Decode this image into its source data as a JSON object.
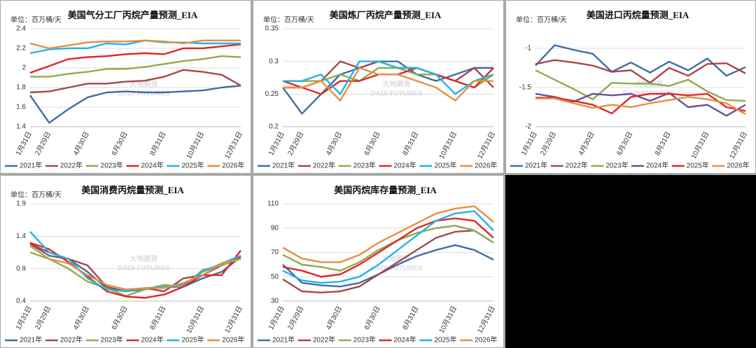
{
  "chart_data": [
    {
      "type": "line",
      "title": "美国气分工厂丙烷产量预测_EIA",
      "unit": "单位：百万桶/天",
      "watermark": "大地期货",
      "watermark_en": "DADI FUTURES",
      "categories": [
        "1月31日",
        "2月29日",
        null,
        "4月30日",
        null,
        "6月30日",
        null,
        "8月31日",
        null,
        "10月31日",
        null,
        "12月31日"
      ],
      "ylim": [
        1.4,
        2.4
      ],
      "yticks": [
        1.4,
        1.6,
        1.8,
        2,
        2.2,
        2.4
      ],
      "grid": true,
      "series": [
        {
          "name": "2021年",
          "color": "#3f6da3",
          "values": [
            1.72,
            1.44,
            1.58,
            1.7,
            1.75,
            1.76,
            1.75,
            1.75,
            1.76,
            1.77,
            1.8,
            1.82
          ]
        },
        {
          "name": "2022年",
          "color": "#a5484a",
          "values": [
            1.75,
            1.76,
            1.8,
            1.84,
            1.84,
            1.86,
            1.87,
            1.91,
            1.98,
            1.96,
            1.93,
            1.82
          ]
        },
        {
          "name": "2023年",
          "color": "#8fab4e",
          "values": [
            1.91,
            1.91,
            1.94,
            1.96,
            1.99,
            1.99,
            2.01,
            2.04,
            2.07,
            2.09,
            2.12,
            2.11
          ]
        },
        {
          "name": "2024年",
          "color": "#e42528",
          "values": [
            1.95,
            2.02,
            2.09,
            2.11,
            2.12,
            2.14,
            2.15,
            2.14,
            2.2,
            2.2,
            2.22,
            2.24
          ]
        },
        {
          "name": "2025年",
          "color": "#22b4e4",
          "values": [
            2.15,
            2.19,
            2.2,
            2.2,
            2.25,
            2.24,
            2.28,
            2.26,
            2.26,
            2.25,
            2.25,
            2.25
          ]
        },
        {
          "name": "2026年",
          "color": "#e68f42",
          "values": [
            2.25,
            2.2,
            2.23,
            2.26,
            2.27,
            2.27,
            2.28,
            2.27,
            2.25,
            2.28,
            2.28,
            2.28
          ]
        }
      ]
    },
    {
      "type": "line",
      "title": "美国炼厂丙烷产量预测_EIA",
      "unit": "单位：百万桶/天",
      "watermark": "大地期货",
      "watermark_en": "DADI FUTURES",
      "categories": [
        "1月31日",
        "2月29日",
        null,
        "4月30日",
        null,
        "6月30日",
        null,
        "8月31日",
        null,
        "10月31日",
        null,
        "12月31日"
      ],
      "ylim": [
        0.2,
        0.35
      ],
      "yticks": [
        0.2,
        0.25,
        0.3,
        0.35
      ],
      "grid": true,
      "series": [
        {
          "name": "2021年",
          "color": "#3f6da3",
          "values": [
            0.26,
            0.22,
            0.25,
            0.28,
            0.29,
            0.3,
            0.3,
            0.28,
            0.27,
            0.28,
            0.29,
            0.29
          ]
        },
        {
          "name": "2022年",
          "color": "#a5484a",
          "values": [
            0.26,
            0.26,
            0.27,
            0.3,
            0.29,
            0.3,
            0.29,
            0.29,
            0.28,
            0.27,
            0.29,
            0.26
          ]
        },
        {
          "name": "2023年",
          "color": "#8fab4e",
          "values": [
            0.27,
            0.27,
            0.27,
            0.28,
            0.27,
            0.29,
            0.29,
            0.28,
            0.28,
            0.27,
            0.26,
            0.28
          ]
        },
        {
          "name": "2024年",
          "color": "#e42528",
          "values": [
            0.27,
            0.26,
            0.25,
            0.27,
            0.27,
            0.28,
            0.28,
            0.29,
            0.28,
            0.27,
            0.26,
            0.29
          ]
        },
        {
          "name": "2025年",
          "color": "#22b4e4",
          "values": [
            0.27,
            0.27,
            0.28,
            0.25,
            0.3,
            0.3,
            0.29,
            0.29,
            0.28,
            0.25,
            0.27,
            0.28
          ]
        },
        {
          "name": "2026年",
          "color": "#e68f42",
          "values": [
            0.26,
            0.26,
            0.27,
            0.24,
            0.29,
            0.28,
            0.28,
            0.27,
            0.26,
            0.24,
            0.27,
            0.27
          ]
        }
      ]
    },
    {
      "type": "line",
      "title": "美国进口丙烷量预测_EIA",
      "unit": "单位：百万桶/天",
      "watermark": "大地期货",
      "watermark_en": "DADI FUTURES",
      "categories": [
        "1月31日",
        "2月29日",
        null,
        "4月30日",
        null,
        "6月30日",
        null,
        "8月31日",
        null,
        "10月31日",
        null,
        "12月31日"
      ],
      "ylim": [
        -2,
        -0.75
      ],
      "yticks": [
        -2,
        -1.5,
        -1
      ],
      "grid": true,
      "series": [
        {
          "name": "2021年",
          "color": "#3f6da3",
          "values": [
            -1.22,
            -0.96,
            -1.02,
            -1.07,
            -1.3,
            -1.18,
            -1.31,
            -1.17,
            -1.28,
            -1.13,
            -1.35,
            -1.24
          ]
        },
        {
          "name": "2022年",
          "color": "#a5484a",
          "values": [
            -1.2,
            -1.15,
            -1.18,
            -1.22,
            -1.3,
            -1.28,
            -1.44,
            -1.25,
            -1.35,
            -1.2,
            -1.19,
            -1.32
          ]
        },
        {
          "name": "2023年",
          "color": "#8fab4e",
          "values": [
            -1.28,
            -1.4,
            -1.52,
            -1.65,
            -1.44,
            -1.45,
            -1.45,
            -1.48,
            -1.4,
            -1.55,
            -1.66,
            -1.67
          ]
        },
        {
          "name": "2024年",
          "color": "#6b4f9a",
          "values": [
            -1.58,
            -1.62,
            -1.68,
            -1.58,
            -1.6,
            -1.58,
            -1.67,
            -1.57,
            -1.75,
            -1.72,
            -1.86,
            -1.72
          ]
        },
        {
          "name": "2025年",
          "color": "#e42528",
          "values": [
            -1.63,
            -1.63,
            -1.67,
            -1.72,
            -1.83,
            -1.62,
            -1.58,
            -1.58,
            -1.6,
            -1.58,
            -1.75,
            -1.8
          ]
        },
        {
          "name": "2026年",
          "color": "#e68f42",
          "values": [
            -1.64,
            -1.64,
            -1.7,
            -1.76,
            -1.72,
            -1.75,
            -1.7,
            -1.66,
            -1.62,
            -1.65,
            -1.7,
            -1.84
          ]
        }
      ]
    },
    {
      "type": "line",
      "title": "美国消费丙烷量预测_EIA",
      "unit": "单位：百万桶/天",
      "watermark": "大地期货",
      "watermark_en": "DADI FUTURES",
      "categories": [
        "1月31日",
        "2月29日",
        null,
        "4月30日",
        null,
        "6月30日",
        null,
        "8月31日",
        null,
        "10月31日",
        null,
        "12月31日"
      ],
      "ylim": [
        0.4,
        1.9
      ],
      "yticks": [
        0.4,
        0.9,
        1.4,
        1.9
      ],
      "grid": true,
      "series": [
        {
          "name": "2021年",
          "color": "#3f6da3",
          "values": [
            1.28,
            1.1,
            1.05,
            0.85,
            0.6,
            0.55,
            0.58,
            0.62,
            0.62,
            0.75,
            0.85,
            1.08
          ]
        },
        {
          "name": "2022年",
          "color": "#a5484a",
          "values": [
            1.28,
            1.15,
            1.05,
            0.95,
            0.62,
            0.55,
            0.6,
            0.55,
            0.75,
            0.8,
            0.95,
            1.08
          ]
        },
        {
          "name": "2023年",
          "color": "#8fab4e",
          "values": [
            1.15,
            1.05,
            0.9,
            0.7,
            0.6,
            0.48,
            0.58,
            0.65,
            0.62,
            0.88,
            0.95,
            1.05
          ]
        },
        {
          "name": "2024年",
          "color": "#e42528",
          "values": [
            1.3,
            1.2,
            1.0,
            0.78,
            0.55,
            0.47,
            0.45,
            0.5,
            0.62,
            0.8,
            0.8,
            1.18
          ]
        },
        {
          "name": "2025年",
          "color": "#22b4e4",
          "values": [
            1.47,
            1.15,
            1.05,
            0.75,
            0.58,
            0.55,
            0.6,
            0.62,
            0.65,
            0.85,
            0.98,
            1.1
          ]
        },
        {
          "name": "2026年",
          "color": "#e68f42",
          "values": [
            1.25,
            1.05,
            0.98,
            0.8,
            0.65,
            0.58,
            0.6,
            0.6,
            0.68,
            0.8,
            0.98,
            1.05
          ]
        }
      ]
    },
    {
      "type": "line",
      "title": "美国丙烷库存量预测_EIA",
      "watermark": "大地期货",
      "watermark_en": "DADI FUTURES",
      "categories": [
        "1月31日",
        "2月29日",
        null,
        "4月30日",
        null,
        "6月30日",
        null,
        "8月31日",
        null,
        "10月31日",
        null,
        "12月31日"
      ],
      "ylim": [
        30,
        110
      ],
      "yticks": [
        30,
        50,
        70,
        90,
        110
      ],
      "grid": true,
      "series": [
        {
          "name": "2021年",
          "color": "#3f6da3",
          "values": [
            60,
            45,
            43,
            42,
            45,
            52,
            60,
            67,
            72,
            76,
            72,
            64
          ]
        },
        {
          "name": "2022年",
          "color": "#a5484a",
          "values": [
            48,
            38,
            37,
            38,
            42,
            52,
            62,
            72,
            82,
            87,
            88,
            78
          ]
        },
        {
          "name": "2023年",
          "color": "#8fab4e",
          "values": [
            68,
            60,
            58,
            55,
            62,
            72,
            80,
            86,
            90,
            92,
            88,
            78
          ]
        },
        {
          "name": "2024年",
          "color": "#e42528",
          "values": [
            58,
            55,
            50,
            52,
            60,
            70,
            80,
            90,
            96,
            98,
            96,
            82
          ]
        },
        {
          "name": "2025年",
          "color": "#22b4e4",
          "values": [
            55,
            47,
            45,
            46,
            50,
            60,
            72,
            84,
            96,
            102,
            104,
            88
          ]
        },
        {
          "name": "2026年",
          "color": "#e68f42",
          "values": [
            74,
            65,
            62,
            62,
            68,
            78,
            86,
            94,
            102,
            106,
            108,
            95
          ]
        }
      ]
    }
  ]
}
